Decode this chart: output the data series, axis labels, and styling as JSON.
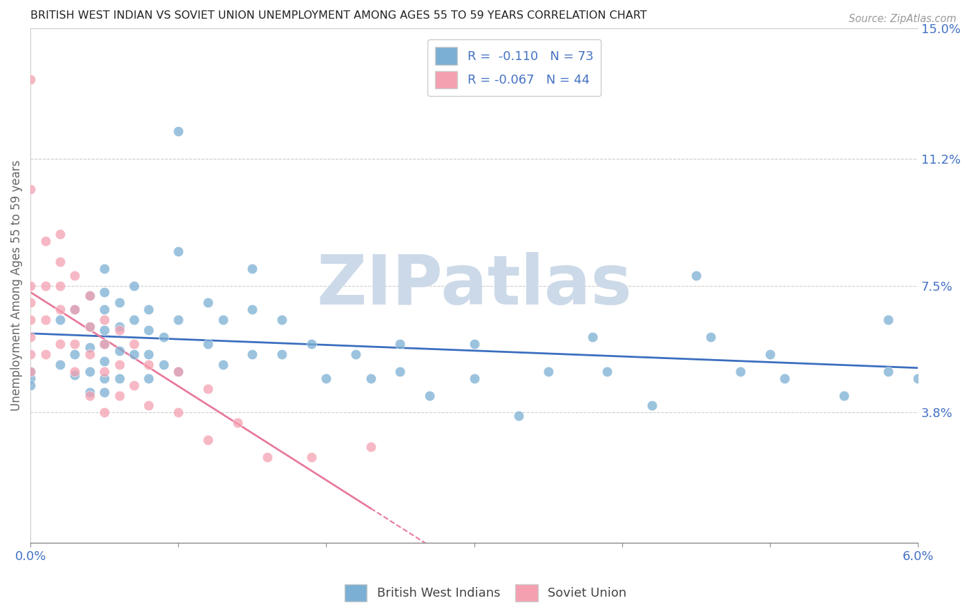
{
  "title": "BRITISH WEST INDIAN VS SOVIET UNION UNEMPLOYMENT AMONG AGES 55 TO 59 YEARS CORRELATION CHART",
  "source": "Source: ZipAtlas.com",
  "ylabel": "Unemployment Among Ages 55 to 59 years",
  "xlim": [
    0.0,
    0.06
  ],
  "ylim": [
    0.0,
    0.15
  ],
  "yticks_right": [
    0.038,
    0.075,
    0.112,
    0.15
  ],
  "yticks_right_labels": [
    "3.8%",
    "7.5%",
    "11.2%",
    "15.0%"
  ],
  "r_blue": -0.11,
  "n_blue": 73,
  "r_pink": -0.067,
  "n_pink": 44,
  "blue_color": "#7bafd4",
  "pink_color": "#f4a0b0",
  "blue_line_color": "#3a6ebf",
  "pink_line_color": "#e8799a",
  "watermark": "ZIPatlas",
  "watermark_color": "#ccd9e8",
  "blue_scatter_x": [
    0.0,
    0.0,
    0.0,
    0.002,
    0.002,
    0.003,
    0.003,
    0.003,
    0.004,
    0.004,
    0.004,
    0.004,
    0.004,
    0.005,
    0.005,
    0.005,
    0.005,
    0.005,
    0.005,
    0.005,
    0.005,
    0.006,
    0.006,
    0.006,
    0.006,
    0.007,
    0.007,
    0.007,
    0.008,
    0.008,
    0.008,
    0.008,
    0.009,
    0.009,
    0.01,
    0.01,
    0.01,
    0.01,
    0.012,
    0.012,
    0.013,
    0.013,
    0.015,
    0.015,
    0.015,
    0.017,
    0.017,
    0.019,
    0.02,
    0.022,
    0.023,
    0.025,
    0.025,
    0.027,
    0.03,
    0.03,
    0.033,
    0.035,
    0.038,
    0.039,
    0.042,
    0.045,
    0.046,
    0.048,
    0.05,
    0.051,
    0.055,
    0.058,
    0.058,
    0.06
  ],
  "blue_scatter_y": [
    0.05,
    0.048,
    0.046,
    0.065,
    0.052,
    0.068,
    0.055,
    0.049,
    0.072,
    0.063,
    0.057,
    0.05,
    0.044,
    0.08,
    0.073,
    0.068,
    0.062,
    0.058,
    0.053,
    0.048,
    0.044,
    0.07,
    0.063,
    0.056,
    0.048,
    0.075,
    0.065,
    0.055,
    0.068,
    0.062,
    0.055,
    0.048,
    0.06,
    0.052,
    0.12,
    0.085,
    0.065,
    0.05,
    0.07,
    0.058,
    0.065,
    0.052,
    0.08,
    0.068,
    0.055,
    0.065,
    0.055,
    0.058,
    0.048,
    0.055,
    0.048,
    0.058,
    0.05,
    0.043,
    0.058,
    0.048,
    0.037,
    0.05,
    0.06,
    0.05,
    0.04,
    0.078,
    0.06,
    0.05,
    0.055,
    0.048,
    0.043,
    0.065,
    0.05,
    0.048
  ],
  "pink_scatter_x": [
    0.0,
    0.0,
    0.0,
    0.0,
    0.0,
    0.0,
    0.0,
    0.0,
    0.001,
    0.001,
    0.001,
    0.001,
    0.002,
    0.002,
    0.002,
    0.002,
    0.002,
    0.003,
    0.003,
    0.003,
    0.003,
    0.004,
    0.004,
    0.004,
    0.004,
    0.005,
    0.005,
    0.005,
    0.005,
    0.006,
    0.006,
    0.006,
    0.007,
    0.007,
    0.008,
    0.008,
    0.01,
    0.01,
    0.012,
    0.012,
    0.014,
    0.016,
    0.019,
    0.023
  ],
  "pink_scatter_y": [
    0.135,
    0.103,
    0.075,
    0.07,
    0.065,
    0.06,
    0.055,
    0.05,
    0.088,
    0.075,
    0.065,
    0.055,
    0.09,
    0.082,
    0.075,
    0.068,
    0.058,
    0.078,
    0.068,
    0.058,
    0.05,
    0.072,
    0.063,
    0.055,
    0.043,
    0.065,
    0.058,
    0.05,
    0.038,
    0.062,
    0.052,
    0.043,
    0.058,
    0.046,
    0.052,
    0.04,
    0.05,
    0.038,
    0.045,
    0.03,
    0.035,
    0.025,
    0.025,
    0.028
  ]
}
